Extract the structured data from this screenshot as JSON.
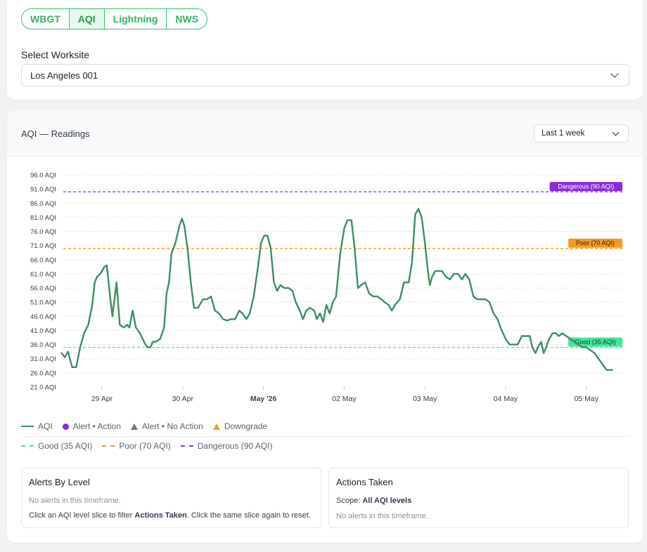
{
  "tabs": [
    {
      "label": "WBGT",
      "active": false
    },
    {
      "label": "AQI",
      "active": true
    },
    {
      "label": "Lightning",
      "active": false
    },
    {
      "label": "NWS",
      "active": false
    }
  ],
  "worksite": {
    "label": "Select Worksite",
    "value": "Los Angeles 001"
  },
  "chart_card": {
    "title": "AQI — Readings",
    "range": "Last 1 week"
  },
  "chart_data": {
    "type": "line",
    "y_unit": "AQI",
    "y_ticks": [
      "96.0 AQI",
      "91.0 AQI",
      "86.0 AQI",
      "81.0 AQI",
      "76.0 AQI",
      "71.0 AQI",
      "66.0 AQI",
      "61.0 AQI",
      "56.0 AQI",
      "51.0 AQI",
      "46.0 AQI",
      "41.0 AQI",
      "36.0 AQI",
      "31.0 AQI",
      "26.0 AQI",
      "21.0 AQI"
    ],
    "x_ticks": [
      "29 Apr",
      "30 Apr",
      "May '26",
      "02 May",
      "03 May",
      "04 May",
      "05 May"
    ],
    "x_range_days": [
      -0.5,
      6.45
    ],
    "ylim": [
      21,
      96
    ],
    "grid": true,
    "series": [
      {
        "name": "AQI",
        "color": "#3e8e5f",
        "points": [
          [
            -0.5,
            33
          ],
          [
            -0.46,
            31.5
          ],
          [
            -0.42,
            33.5
          ],
          [
            -0.37,
            28
          ],
          [
            -0.32,
            28
          ],
          [
            -0.27,
            35
          ],
          [
            -0.22,
            40
          ],
          [
            -0.17,
            43
          ],
          [
            -0.12,
            50
          ],
          [
            -0.09,
            58
          ],
          [
            -0.06,
            60
          ],
          [
            -0.02,
            61
          ],
          [
            0.03,
            63.5
          ],
          [
            0.06,
            64
          ],
          [
            0.1,
            53
          ],
          [
            0.13,
            46
          ],
          [
            0.18,
            58
          ],
          [
            0.22,
            43
          ],
          [
            0.27,
            42
          ],
          [
            0.31,
            43
          ],
          [
            0.34,
            42
          ],
          [
            0.38,
            48
          ],
          [
            0.42,
            42
          ],
          [
            0.47,
            40
          ],
          [
            0.52,
            37
          ],
          [
            0.56,
            35
          ],
          [
            0.6,
            35
          ],
          [
            0.63,
            37
          ],
          [
            0.67,
            37
          ],
          [
            0.72,
            38
          ],
          [
            0.77,
            42
          ],
          [
            0.8,
            54
          ],
          [
            0.83,
            58
          ],
          [
            0.86,
            68
          ],
          [
            0.91,
            72
          ],
          [
            0.96,
            78
          ],
          [
            0.99,
            80.5
          ],
          [
            1.02,
            78
          ],
          [
            1.06,
            70
          ],
          [
            1.1,
            58
          ],
          [
            1.14,
            49
          ],
          [
            1.19,
            49
          ],
          [
            1.25,
            52
          ],
          [
            1.3,
            52
          ],
          [
            1.35,
            53
          ],
          [
            1.4,
            48
          ],
          [
            1.45,
            47
          ],
          [
            1.5,
            45
          ],
          [
            1.55,
            44.5
          ],
          [
            1.6,
            45
          ],
          [
            1.65,
            45
          ],
          [
            1.7,
            48
          ],
          [
            1.74,
            47
          ],
          [
            1.79,
            45
          ],
          [
            1.83,
            47
          ],
          [
            1.88,
            53
          ],
          [
            1.93,
            63
          ],
          [
            1.97,
            72
          ],
          [
            2.01,
            74.5
          ],
          [
            2.05,
            74.5
          ],
          [
            2.09,
            70
          ],
          [
            2.13,
            58
          ],
          [
            2.17,
            55
          ],
          [
            2.21,
            57
          ],
          [
            2.26,
            56
          ],
          [
            2.31,
            56
          ],
          [
            2.36,
            55
          ],
          [
            2.4,
            51
          ],
          [
            2.45,
            48
          ],
          [
            2.49,
            45
          ],
          [
            2.53,
            48
          ],
          [
            2.58,
            49
          ],
          [
            2.63,
            48
          ],
          [
            2.66,
            45
          ],
          [
            2.7,
            47
          ],
          [
            2.74,
            44
          ],
          [
            2.78,
            50
          ],
          [
            2.82,
            47
          ],
          [
            2.86,
            51
          ],
          [
            2.9,
            53
          ],
          [
            2.95,
            68
          ],
          [
            3.0,
            77
          ],
          [
            3.04,
            80
          ],
          [
            3.09,
            80
          ],
          [
            3.13,
            70
          ],
          [
            3.17,
            56
          ],
          [
            3.21,
            57
          ],
          [
            3.26,
            58
          ],
          [
            3.31,
            54
          ],
          [
            3.36,
            53
          ],
          [
            3.41,
            53
          ],
          [
            3.46,
            52
          ],
          [
            3.5,
            51
          ],
          [
            3.55,
            50
          ],
          [
            3.59,
            48
          ],
          [
            3.63,
            50
          ],
          [
            3.69,
            52
          ],
          [
            3.74,
            58
          ],
          [
            3.8,
            58
          ],
          [
            3.84,
            65
          ],
          [
            3.88,
            82
          ],
          [
            3.92,
            84
          ],
          [
            3.96,
            81
          ],
          [
            4.0,
            72
          ],
          [
            4.03,
            64
          ],
          [
            4.06,
            57
          ],
          [
            4.09,
            60
          ],
          [
            4.13,
            62
          ],
          [
            4.17,
            62
          ],
          [
            4.21,
            62
          ],
          [
            4.26,
            60
          ],
          [
            4.31,
            59
          ],
          [
            4.36,
            61
          ],
          [
            4.41,
            61
          ],
          [
            4.46,
            59
          ],
          [
            4.5,
            61
          ],
          [
            4.55,
            59
          ],
          [
            4.6,
            53
          ],
          [
            4.65,
            52
          ],
          [
            4.7,
            52
          ],
          [
            4.75,
            52
          ],
          [
            4.8,
            51
          ],
          [
            4.85,
            47
          ],
          [
            4.9,
            45
          ],
          [
            4.95,
            41
          ],
          [
            5.0,
            38
          ],
          [
            5.05,
            36
          ],
          [
            5.1,
            36
          ],
          [
            5.15,
            36
          ],
          [
            5.2,
            39
          ],
          [
            5.25,
            39
          ],
          [
            5.3,
            39
          ],
          [
            5.33,
            35
          ],
          [
            5.37,
            33
          ],
          [
            5.4,
            35
          ],
          [
            5.44,
            37
          ],
          [
            5.47,
            33
          ],
          [
            5.5,
            35
          ],
          [
            5.54,
            38
          ],
          [
            5.58,
            40
          ],
          [
            5.62,
            40
          ],
          [
            5.66,
            39
          ],
          [
            5.7,
            40
          ],
          [
            5.75,
            39
          ],
          [
            5.8,
            38
          ],
          [
            5.85,
            37
          ],
          [
            5.9,
            36
          ],
          [
            5.95,
            35
          ],
          [
            6.0,
            35
          ],
          [
            6.05,
            34
          ],
          [
            6.1,
            33
          ],
          [
            6.15,
            31
          ],
          [
            6.2,
            29
          ],
          [
            6.25,
            27
          ],
          [
            6.3,
            27
          ],
          [
            6.32,
            27
          ]
        ]
      }
    ],
    "thresholds": [
      {
        "label": "Good (35 AQI)",
        "value": 35,
        "color": "#3de89a"
      },
      {
        "label": "Poor (70 AQI)",
        "value": 70,
        "color": "#f59a23"
      },
      {
        "label": "Dangerous (90 AQI)",
        "value": 90,
        "color": "#8a2be2"
      }
    ]
  },
  "legend": {
    "row1": [
      {
        "label": "AQI",
        "kind": "line",
        "color": "#3e8e5f"
      },
      {
        "label": "Alert • Action",
        "kind": "dot",
        "color": "#8a2be2"
      },
      {
        "label": "Alert • No Action",
        "kind": "triangle",
        "color": "#6b7280"
      },
      {
        "label": "Downgrade",
        "kind": "triangle",
        "color": "#f59a23"
      }
    ],
    "row2": [
      {
        "label": "Good (35 AQI)",
        "color": "#3de89a"
      },
      {
        "label": "Poor (70 AQI)",
        "color": "#f59a23"
      },
      {
        "label": "Dangerous (90 AQI)",
        "color": "#8a2be2"
      }
    ]
  },
  "alerts_panel": {
    "title": "Alerts By Level",
    "empty": "No alerts in this timeframe.",
    "hint_pre": "Click an AQI level slice to filter ",
    "hint_bold": "Actions Taken",
    "hint_post": ". Click the same slice again to reset."
  },
  "actions_panel": {
    "title": "Actions Taken",
    "scope_label": "Scope: ",
    "scope_value": "All AQI levels",
    "empty": "No alerts in this timeframe."
  }
}
